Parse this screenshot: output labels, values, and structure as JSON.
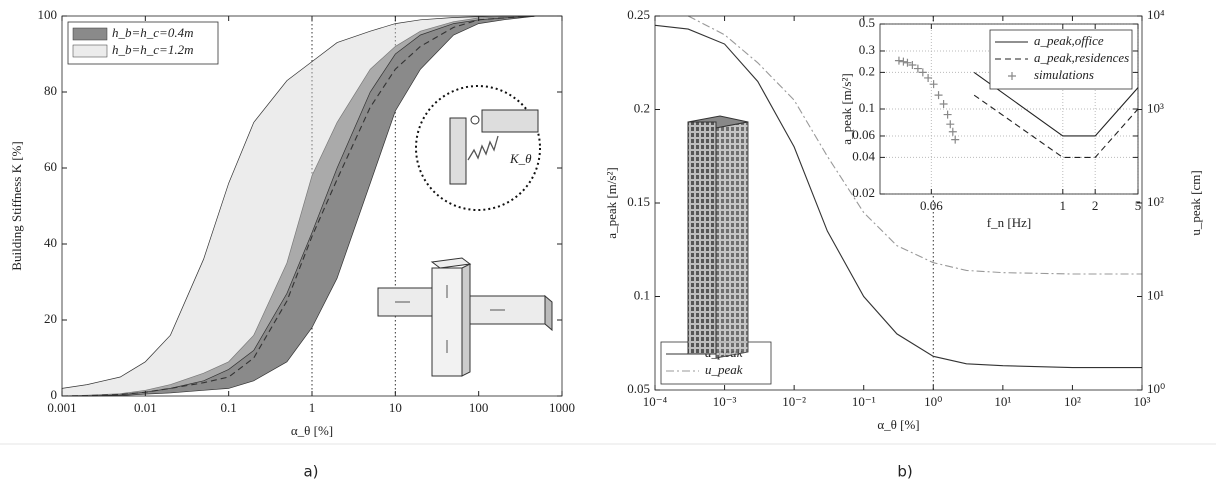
{
  "chart_data": [
    {
      "type": "area",
      "caption": "a)",
      "annotation": "K_θ",
      "xlabel": "α_θ [%]",
      "ylabel": "Building Stiffness K [%]",
      "xscale": "log",
      "xlim": [
        0.001,
        1000
      ],
      "xticks": [
        0.001,
        0.01,
        0.1,
        1,
        10,
        100,
        1000
      ],
      "ylim": [
        0,
        100
      ],
      "yticks": [
        0,
        20,
        40,
        60,
        80,
        100
      ],
      "vlines": [
        1,
        10
      ],
      "legend": "upper left",
      "x": [
        0.001,
        0.002,
        0.005,
        0.01,
        0.02,
        0.05,
        0.1,
        0.2,
        0.5,
        1,
        2,
        5,
        10,
        20,
        50,
        100,
        200,
        500,
        1000
      ],
      "series": [
        {
          "name": "h_b=h_c=0.4m",
          "color": "#8a8a8a",
          "opacity": 1,
          "lower": [
            0,
            0,
            0.1,
            0.5,
            0.8,
            1.5,
            2,
            4,
            9,
            18,
            31,
            56,
            75,
            86,
            95,
            98,
            99,
            100,
            100
          ],
          "upper": [
            0,
            0.2,
            0.6,
            1.5,
            3,
            6,
            9,
            16,
            35,
            58,
            72,
            86,
            92,
            96,
            98.5,
            99.5,
            99.8,
            100,
            100
          ]
        },
        {
          "name": "h_b=h_c=1.2m",
          "color": "#d3d3d3",
          "opacity": 0.44,
          "lower": [
            0,
            0,
            0.3,
            1,
            2,
            4,
            7,
            12,
            27,
            43,
            60,
            80,
            90,
            95,
            98,
            99,
            99.5,
            100,
            100
          ],
          "upper": [
            2,
            3,
            5,
            9,
            16,
            36,
            56,
            72,
            83,
            88,
            93,
            96,
            98,
            99,
            99.6,
            99.8,
            100,
            100,
            100
          ]
        },
        {
          "type": "line",
          "style": "dashed",
          "color": "#333333",
          "values": [
            0,
            0.1,
            0.4,
            1,
            2,
            3.5,
            5,
            10,
            25,
            42,
            57,
            76,
            86,
            92,
            97,
            99,
            99.5,
            100,
            100
          ]
        }
      ]
    },
    {
      "type": "line",
      "caption": "b)",
      "xlabel": "α_θ [%]",
      "ylabel": "a_peak [m/s²]",
      "y2label": "u_peak [cm]",
      "y2color": "#999999",
      "xscale": "log",
      "xlim": [
        0.0001,
        1000
      ],
      "xticks": [
        {
          "value": 0.0001,
          "label": "10⁻⁴"
        },
        {
          "value": 0.001,
          "label": "10⁻³"
        },
        {
          "value": 0.01,
          "label": "10⁻²"
        },
        {
          "value": 0.1,
          "label": "10⁻¹"
        },
        {
          "value": 1,
          "label": "10⁰"
        },
        {
          "value": 10,
          "label": "10¹"
        },
        {
          "value": 100,
          "label": "10²"
        },
        {
          "value": 1000,
          "label": "10³"
        }
      ],
      "ylim": [
        0.05,
        0.25
      ],
      "yticks": [
        0.05,
        0.1,
        0.15,
        0.2,
        0.25
      ],
      "y2scale": "log",
      "y2lim": [
        1,
        10000
      ],
      "y2ticks": [
        {
          "value": 1,
          "label": "10⁰"
        },
        {
          "value": 10,
          "label": "10¹"
        },
        {
          "value": 100,
          "label": "10²"
        },
        {
          "value": 1000,
          "label": "10³"
        },
        {
          "value": 10000,
          "label": "10⁴"
        }
      ],
      "vlines": [
        1
      ],
      "legend": "lower left",
      "x": [
        0.0001,
        0.0003,
        0.001,
        0.003,
        0.01,
        0.03,
        0.1,
        0.3,
        1,
        3,
        10,
        100,
        1000
      ],
      "series": [
        {
          "name": "a_peak",
          "color": "#333333",
          "style": "solid",
          "values": [
            0.245,
            0.243,
            0.235,
            0.215,
            0.18,
            0.135,
            0.1,
            0.08,
            0.068,
            0.064,
            0.063,
            0.062,
            0.062
          ]
        },
        {
          "name": "u_peak",
          "color": "#999999",
          "style": "dashdot",
          "axis": "y2",
          "values": [
            null,
            10000,
            6300,
            3160,
            1260,
            316,
            79,
            35,
            23,
            19,
            18,
            17.4,
            17.4
          ]
        }
      ]
    },
    {
      "type": "line",
      "xlabel": "f_n [Hz]",
      "ylabel": "a_peak [m/s²]",
      "xscale": "log",
      "xlim": [
        0.02,
        5
      ],
      "xticks": [
        0.06,
        1,
        2,
        5
      ],
      "yscale": "log",
      "ylim": [
        0.02,
        0.5
      ],
      "yticks": [
        0.02,
        0.04,
        0.06,
        0.1,
        0.2,
        0.3,
        0.5
      ],
      "grid": true,
      "legend": "upper right",
      "series": [
        {
          "name": "a_peak,office",
          "color": "#222222",
          "style": "solid",
          "x": [
            0.15,
            1,
            2,
            5
          ],
          "values": [
            0.2,
            0.06,
            0.06,
            0.15
          ]
        },
        {
          "name": "a_peak,residences",
          "color": "#222222",
          "style": "dashed",
          "x": [
            0.15,
            1,
            2,
            5
          ],
          "values": [
            0.13,
            0.04,
            0.04,
            0.1
          ]
        },
        {
          "name": "simulations",
          "type": "scatter",
          "marker": "+",
          "color": "#888888",
          "x": [
            0.03,
            0.033,
            0.036,
            0.04,
            0.045,
            0.05,
            0.056,
            0.063,
            0.07,
            0.078,
            0.085,
            0.09,
            0.095,
            0.1
          ],
          "values": [
            0.25,
            0.245,
            0.24,
            0.23,
            0.215,
            0.2,
            0.18,
            0.16,
            0.13,
            0.11,
            0.09,
            0.075,
            0.065,
            0.056
          ]
        }
      ]
    }
  ]
}
